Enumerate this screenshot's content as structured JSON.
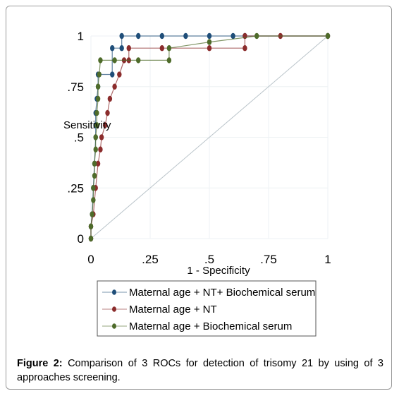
{
  "chart_data": {
    "type": "line",
    "xlabel": "1 - Specificity",
    "ylabel": "Sensitivity",
    "xlim": [
      0,
      1
    ],
    "ylim": [
      0,
      1
    ],
    "x_ticks": [
      0,
      0.25,
      0.5,
      0.75,
      1
    ],
    "x_tick_labels": [
      "0",
      ".25",
      ".5",
      ".75",
      "1"
    ],
    "y_ticks": [
      0,
      0.25,
      0.5,
      0.75,
      1
    ],
    "y_tick_labels": [
      "0",
      ".25",
      ".5",
      ".75",
      "1"
    ],
    "grid": true,
    "legend_position": "bottom",
    "reference_line": {
      "from": [
        0,
        0
      ],
      "to": [
        1,
        1
      ]
    },
    "series": [
      {
        "name": "Maternal age + NT+ Biochemical serum",
        "color": "#1f4e79",
        "points": [
          [
            0,
            0
          ],
          [
            0,
            0.06
          ],
          [
            0.005,
            0.12
          ],
          [
            0.01,
            0.25
          ],
          [
            0.015,
            0.37
          ],
          [
            0.02,
            0.5
          ],
          [
            0.02,
            0.56
          ],
          [
            0.02,
            0.62
          ],
          [
            0.025,
            0.69
          ],
          [
            0.03,
            0.75
          ],
          [
            0.03,
            0.81
          ],
          [
            0.09,
            0.81
          ],
          [
            0.09,
            0.94
          ],
          [
            0.13,
            0.94
          ],
          [
            0.13,
            1
          ],
          [
            0.2,
            1
          ],
          [
            0.3,
            1
          ],
          [
            0.4,
            1
          ],
          [
            0.5,
            1
          ],
          [
            0.6,
            1
          ],
          [
            0.65,
            1
          ],
          [
            1,
            1
          ]
        ]
      },
      {
        "name": "Maternal age + NT",
        "color": "#8b2c2c",
        "points": [
          [
            0,
            0
          ],
          [
            0,
            0.06
          ],
          [
            0.01,
            0.12
          ],
          [
            0.02,
            0.25
          ],
          [
            0.03,
            0.37
          ],
          [
            0.04,
            0.44
          ],
          [
            0.045,
            0.5
          ],
          [
            0.06,
            0.56
          ],
          [
            0.07,
            0.62
          ],
          [
            0.08,
            0.69
          ],
          [
            0.1,
            0.75
          ],
          [
            0.12,
            0.81
          ],
          [
            0.14,
            0.88
          ],
          [
            0.16,
            0.88
          ],
          [
            0.16,
            0.94
          ],
          [
            0.3,
            0.94
          ],
          [
            0.5,
            0.94
          ],
          [
            0.65,
            0.94
          ],
          [
            0.65,
            1
          ],
          [
            0.8,
            1
          ],
          [
            1,
            1
          ]
        ]
      },
      {
        "name": "Maternal age + Biochemical serum",
        "color": "#4e6b2a",
        "points": [
          [
            0,
            0
          ],
          [
            0,
            0.06
          ],
          [
            0.005,
            0.12
          ],
          [
            0.01,
            0.19
          ],
          [
            0.01,
            0.25
          ],
          [
            0.015,
            0.31
          ],
          [
            0.015,
            0.37
          ],
          [
            0.02,
            0.44
          ],
          [
            0.02,
            0.5
          ],
          [
            0.025,
            0.56
          ],
          [
            0.025,
            0.62
          ],
          [
            0.03,
            0.69
          ],
          [
            0.03,
            0.75
          ],
          [
            0.035,
            0.81
          ],
          [
            0.04,
            0.88
          ],
          [
            0.1,
            0.88
          ],
          [
            0.2,
            0.88
          ],
          [
            0.33,
            0.88
          ],
          [
            0.33,
            0.94
          ],
          [
            0.5,
            0.97
          ],
          [
            0.7,
            1
          ],
          [
            1,
            1
          ]
        ]
      }
    ]
  },
  "caption": {
    "label": "Figure 2:",
    "text": " Comparison of 3 ROCs for detection of trisomy 21 by using of 3 approaches screening."
  }
}
